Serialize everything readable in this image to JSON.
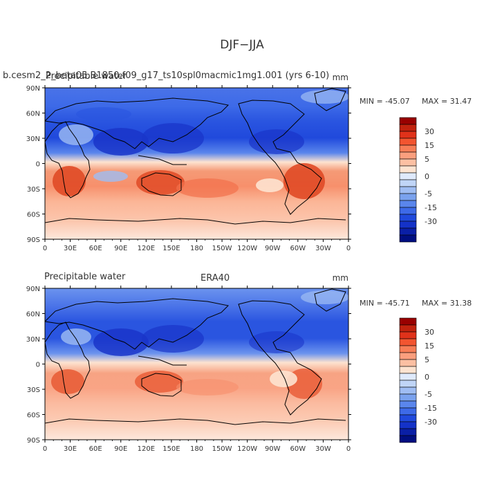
{
  "figure": {
    "title": "DJF−JJA"
  },
  "panels": [
    {
      "left_title": "Precipitable water",
      "case_title": "b.cesm2_2_beta05.B1850.f09_g17_ts10spl0macmic1mg1.001 (yrs 6-10)",
      "units": "mm",
      "min_label": "MIN = -45.07",
      "max_label": "MAX =  31.47"
    },
    {
      "left_title": "Precipitable water",
      "case_title": "ERA40",
      "units": "mm",
      "min_label": "MIN = -45.71",
      "max_label": "MAX =  31.38"
    }
  ],
  "chart_data": {
    "type": "heatmap",
    "description_fields": "filled contour map of seasonal difference",
    "xlabel": "",
    "ylabel": "",
    "x_ticks": [
      "0",
      "30E",
      "60E",
      "90E",
      "120E",
      "150E",
      "180",
      "150W",
      "120W",
      "90W",
      "60W",
      "30W",
      "0"
    ],
    "y_ticks": [
      "90N",
      "60N",
      "30N",
      "0",
      "30S",
      "60S",
      "90S"
    ],
    "xlim": [
      0,
      360
    ],
    "ylim": [
      -90,
      90
    ],
    "contour_levels": [
      -40,
      -35,
      -30,
      -25,
      -20,
      -15,
      -10,
      -5,
      -2.5,
      0,
      2.5,
      5,
      10,
      15,
      20,
      25,
      30,
      35
    ],
    "colorbar_labels": [
      "30",
      "15",
      "5",
      "0",
      "-5",
      "-15",
      "-30"
    ],
    "colorbar_colors": [
      "#990000",
      "#c1220e",
      "#e0321a",
      "#f25530",
      "#f77e57",
      "#fa9f7e",
      "#fcc0a3",
      "#fde3d0",
      "#dfeafc",
      "#c0d5f7",
      "#9fbdf3",
      "#7aa2ee",
      "#5a86ec",
      "#3d6ae8",
      "#2049dc",
      "#1432c8",
      "#0a1fa6",
      "#000e80"
    ],
    "colors": {
      "neg_strong": "#1f3fd8",
      "neg_mid": "#4a73e8",
      "neg_light": "#9fbdf3",
      "pos_light": "#fde3d0",
      "pos_mid": "#f59a76",
      "pos_strong": "#e04a26"
    }
  }
}
